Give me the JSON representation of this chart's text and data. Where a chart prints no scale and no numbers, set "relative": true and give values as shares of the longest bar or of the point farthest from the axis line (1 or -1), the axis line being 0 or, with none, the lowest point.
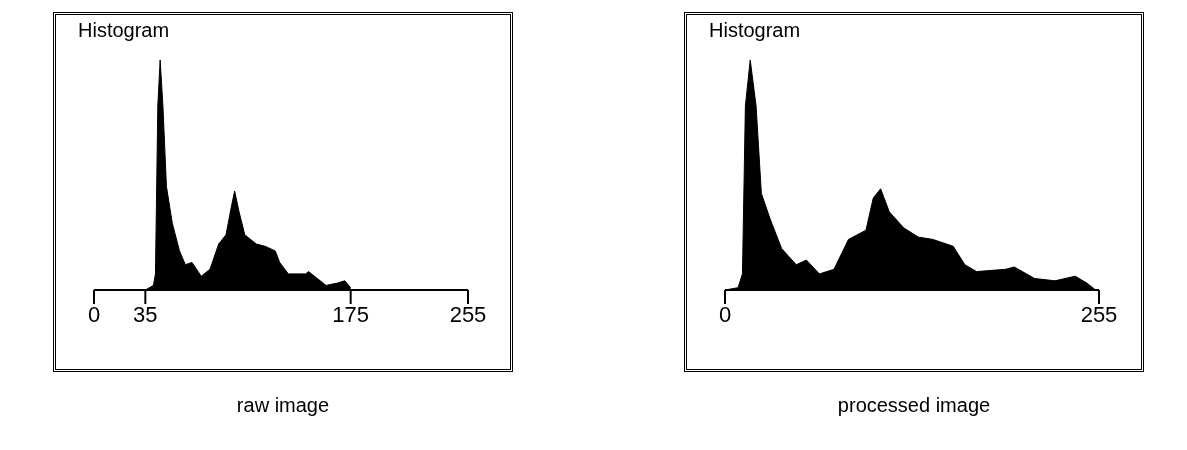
{
  "chart_data": [
    {
      "type": "area",
      "title": "Histogram",
      "xlabel": "raw image",
      "relative": true,
      "color": "#000000",
      "xlim": [
        0,
        255
      ],
      "xticks": [
        0,
        35,
        175,
        255
      ],
      "x": [
        35,
        40.5,
        41.9,
        43.5,
        45.1,
        47,
        49.4,
        53.4,
        58.3,
        62.3,
        66.8,
        73.1,
        79.1,
        85,
        90,
        93.9,
        95.9,
        98.9,
        102.8,
        110.7,
        116.7,
        123.6,
        126.6,
        132.5,
        144.3,
        146.3,
        152.3,
        158.2,
        166,
        171,
        175
      ],
      "values": [
        0,
        0.02,
        0.07,
        0.8,
        1,
        0.8,
        0.45,
        0.29,
        0.17,
        0.11,
        0.12,
        0.06,
        0.09,
        0.2,
        0.24,
        0.37,
        0.43,
        0.34,
        0.24,
        0.2,
        0.19,
        0.17,
        0.12,
        0.07,
        0.07,
        0.08,
        0.05,
        0.02,
        0.03,
        0.04,
        0.01
      ]
    },
    {
      "type": "area",
      "title": "Histogram",
      "xlabel": "processed image",
      "relative": true,
      "color": "#000000",
      "xlim": [
        0,
        255
      ],
      "xticks": [
        0,
        255
      ],
      "x": [
        0,
        8.9,
        11.9,
        13.9,
        17.2,
        21.2,
        24.8,
        30.7,
        38.6,
        48.6,
        55.5,
        64.4,
        74.3,
        84.2,
        96.1,
        101.1,
        106.1,
        112,
        121.9,
        131.8,
        141.7,
        155.6,
        163.5,
        171.5,
        191.3,
        197.2,
        211.1,
        225,
        238.8,
        246.7,
        252.7
      ],
      "values": [
        0,
        0.01,
        0.07,
        0.8,
        1,
        0.8,
        0.42,
        0.31,
        0.18,
        0.11,
        0.13,
        0.07,
        0.09,
        0.22,
        0.26,
        0.4,
        0.44,
        0.34,
        0.27,
        0.23,
        0.22,
        0.19,
        0.11,
        0.08,
        0.09,
        0.1,
        0.05,
        0.04,
        0.06,
        0.03,
        0
      ]
    }
  ]
}
